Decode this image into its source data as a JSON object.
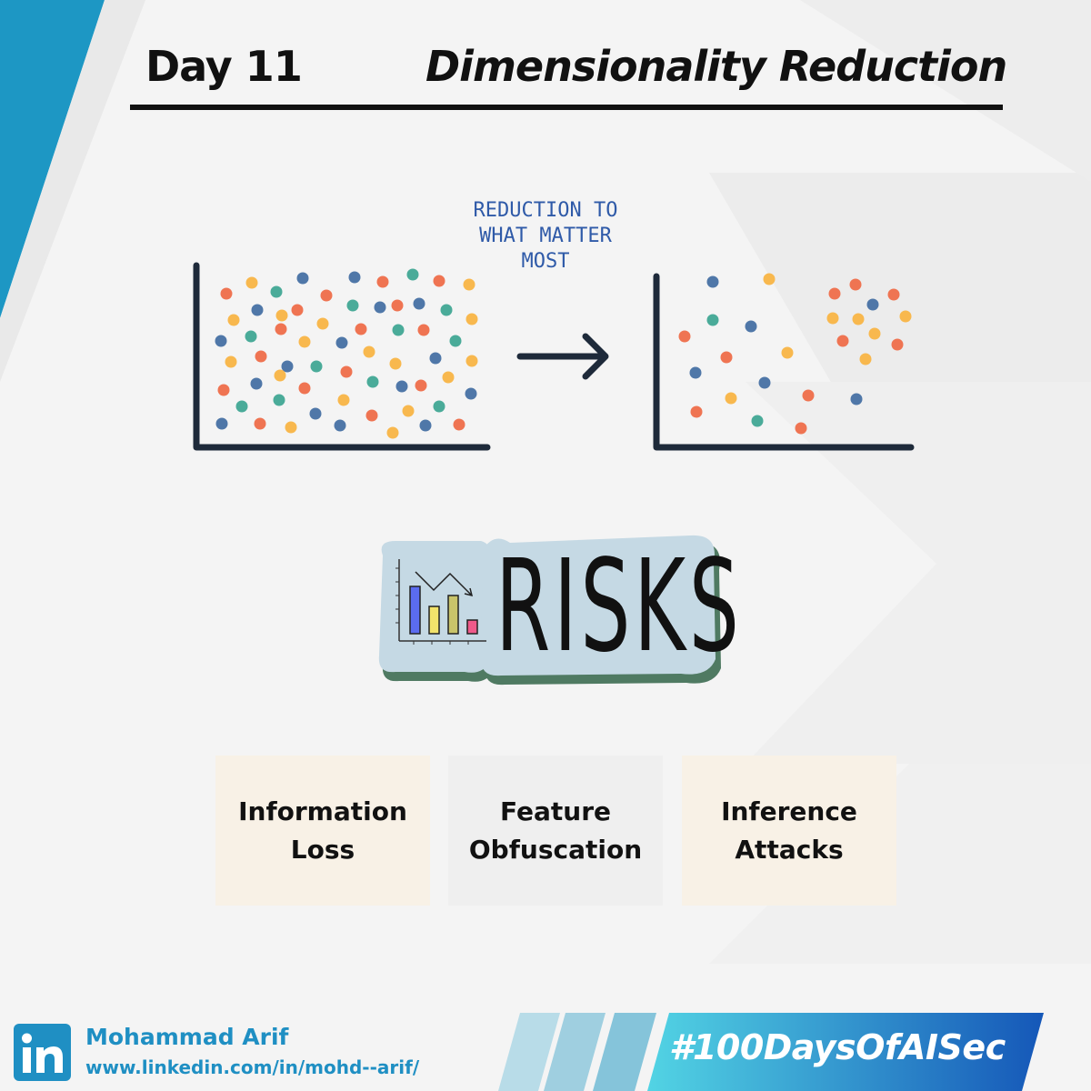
{
  "header": {
    "day": "Day 11",
    "topic": "Dimensionality Reduction"
  },
  "illustration": {
    "caption_lines": [
      "REDUCTION TO",
      "WHAT MATTER",
      "MOST"
    ],
    "arrow_icon": "right-arrow-icon",
    "left_plot_label": "",
    "right_plot_label": ""
  },
  "risks_badge": {
    "word": "RISKS",
    "icon": "bar-chart-icon",
    "bar_colors": [
      "#5b6cf0",
      "#f2e36b",
      "#c9c46a",
      "#ef5a8a"
    ]
  },
  "risk_cards": [
    {
      "lines": [
        "Information",
        "Loss"
      ],
      "color": "#f8f1e6"
    },
    {
      "lines": [
        "Feature",
        "Obfuscation"
      ],
      "color": "#efefef"
    },
    {
      "lines": [
        "Inference",
        "Attacks"
      ],
      "color": "#f8f1e6"
    }
  ],
  "footer": {
    "icon": "linkedin-icon",
    "name": "Mohammad Arif",
    "url": "www.linkedin.com/in/mohd--arif/",
    "hashtag": "#100DaysOfAISec"
  },
  "colors": {
    "accent_blue": "#1f8fc3",
    "dot_orange": "#ef7452",
    "dot_yellow": "#f8b84e",
    "dot_teal": "#4aab99",
    "dot_blue": "#4f77a8",
    "axis": "#1e2a3a"
  }
}
